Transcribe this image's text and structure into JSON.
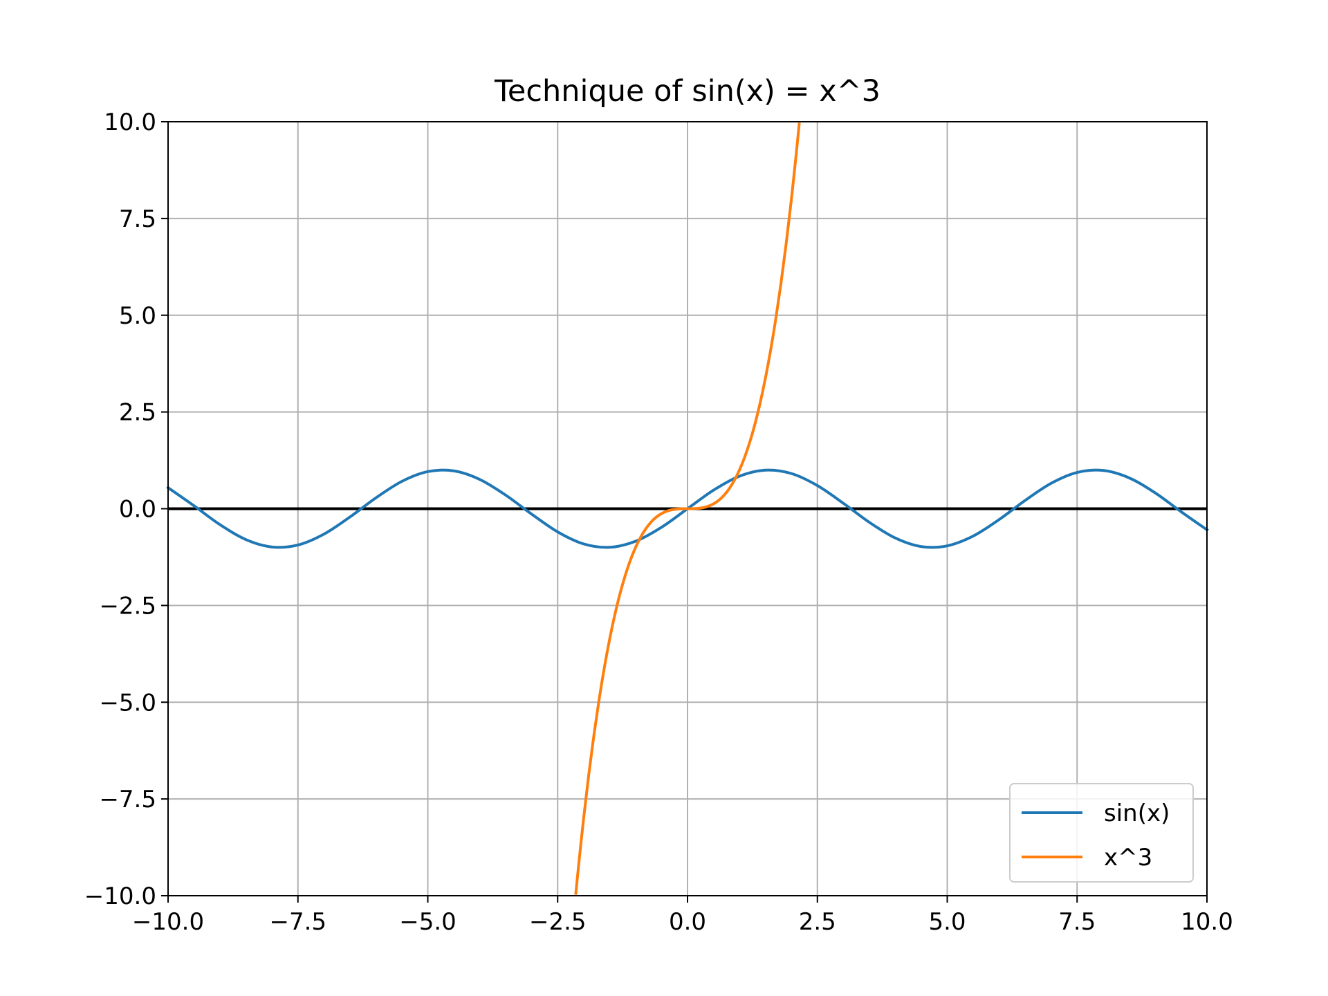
{
  "chart_data": {
    "type": "line",
    "title": "Technique of sin(x) = x^3",
    "xlabel": "",
    "ylabel": "",
    "xlim": [
      -10,
      10
    ],
    "ylim": [
      -10,
      10
    ],
    "grid": true,
    "legend_position": "lower-right",
    "x_ticks": [
      -10,
      -7.5,
      -5,
      -2.5,
      0,
      2.5,
      5,
      7.5,
      10
    ],
    "x_tick_labels": [
      "−10.0",
      "−7.5",
      "−5.0",
      "−2.5",
      "0.0",
      "2.5",
      "5.0",
      "7.5",
      "10.0"
    ],
    "y_ticks": [
      10,
      7.5,
      5,
      2.5,
      0,
      -2.5,
      -5,
      -7.5,
      -10
    ],
    "y_tick_labels": [
      "10.0",
      "7.5",
      "5.0",
      "2.5",
      "0.0",
      "−2.5",
      "−5.0",
      "−7.5",
      "−10.0"
    ],
    "reference_line": {
      "y": 0,
      "color": "#000000"
    },
    "series": [
      {
        "name": "sin(x)",
        "color": "#1f77b4",
        "x": [
          -10,
          -9.5,
          -9,
          -8.5,
          -8,
          -7.5,
          -7,
          -6.5,
          -6,
          -5.5,
          -5,
          -4.5,
          -4,
          -3.5,
          -3,
          -2.5,
          -2,
          -1.5,
          -1,
          -0.5,
          0,
          0.5,
          1,
          1.5,
          2,
          2.5,
          3,
          3.5,
          4,
          4.5,
          5,
          5.5,
          6,
          6.5,
          7,
          7.5,
          8,
          8.5,
          9,
          9.5,
          10
        ],
        "y": [
          0.544,
          0.075,
          -0.412,
          -0.798,
          -0.989,
          -0.938,
          -0.657,
          -0.215,
          0.279,
          0.706,
          0.959,
          0.978,
          0.757,
          0.351,
          -0.141,
          -0.598,
          -0.909,
          -0.997,
          -0.841,
          -0.479,
          0,
          0.479,
          0.841,
          0.997,
          0.909,
          0.598,
          0.141,
          -0.351,
          -0.757,
          -0.978,
          -0.959,
          -0.706,
          -0.279,
          0.215,
          0.657,
          0.938,
          0.989,
          0.798,
          0.412,
          -0.075,
          -0.544
        ]
      },
      {
        "name": "x^3",
        "color": "#ff7f0e",
        "x": [
          -2.15,
          -2.1,
          -2,
          -1.9,
          -1.8,
          -1.7,
          -1.6,
          -1.5,
          -1.4,
          -1.3,
          -1.2,
          -1.1,
          -1,
          -0.9,
          -0.8,
          -0.7,
          -0.6,
          -0.5,
          -0.4,
          -0.3,
          -0.2,
          -0.1,
          0,
          0.1,
          0.2,
          0.3,
          0.4,
          0.5,
          0.6,
          0.7,
          0.8,
          0.9,
          1,
          1.1,
          1.2,
          1.3,
          1.4,
          1.5,
          1.6,
          1.7,
          1.8,
          1.9,
          2,
          2.1,
          2.15
        ],
        "y": [
          -9.938,
          -9.261,
          -8,
          -6.859,
          -5.832,
          -4.913,
          -4.096,
          -3.375,
          -2.744,
          -2.197,
          -1.728,
          -1.331,
          -1,
          -0.729,
          -0.512,
          -0.343,
          -0.216,
          -0.125,
          -0.064,
          -0.027,
          -0.008,
          -0.001,
          0,
          0.001,
          0.008,
          0.027,
          0.064,
          0.125,
          0.216,
          0.343,
          0.512,
          0.729,
          1,
          1.331,
          1.728,
          2.197,
          2.744,
          3.375,
          4.096,
          4.913,
          5.832,
          6.859,
          8,
          9.261,
          9.938
        ]
      }
    ]
  }
}
